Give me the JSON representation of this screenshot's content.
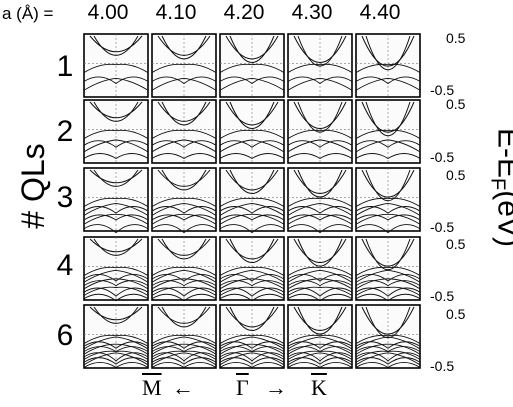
{
  "lattice_label": "a (Å) =",
  "columns": [
    "4.00",
    "4.10",
    "4.20",
    "4.30",
    "4.40"
  ],
  "rows": [
    "1",
    "2",
    "3",
    "4",
    "6"
  ],
  "y_axis_left": "# QLs",
  "y_axis_right": {
    "main": "E-E",
    "sub": "F",
    "unit": "(eV)"
  },
  "y_ticks": {
    "top": "0.5",
    "bottom": "-0.5"
  },
  "k_path": {
    "left_point": "M",
    "center_point": "Γ",
    "right_point": "K",
    "left_arrow": "←",
    "right_arrow": "→"
  }
}
